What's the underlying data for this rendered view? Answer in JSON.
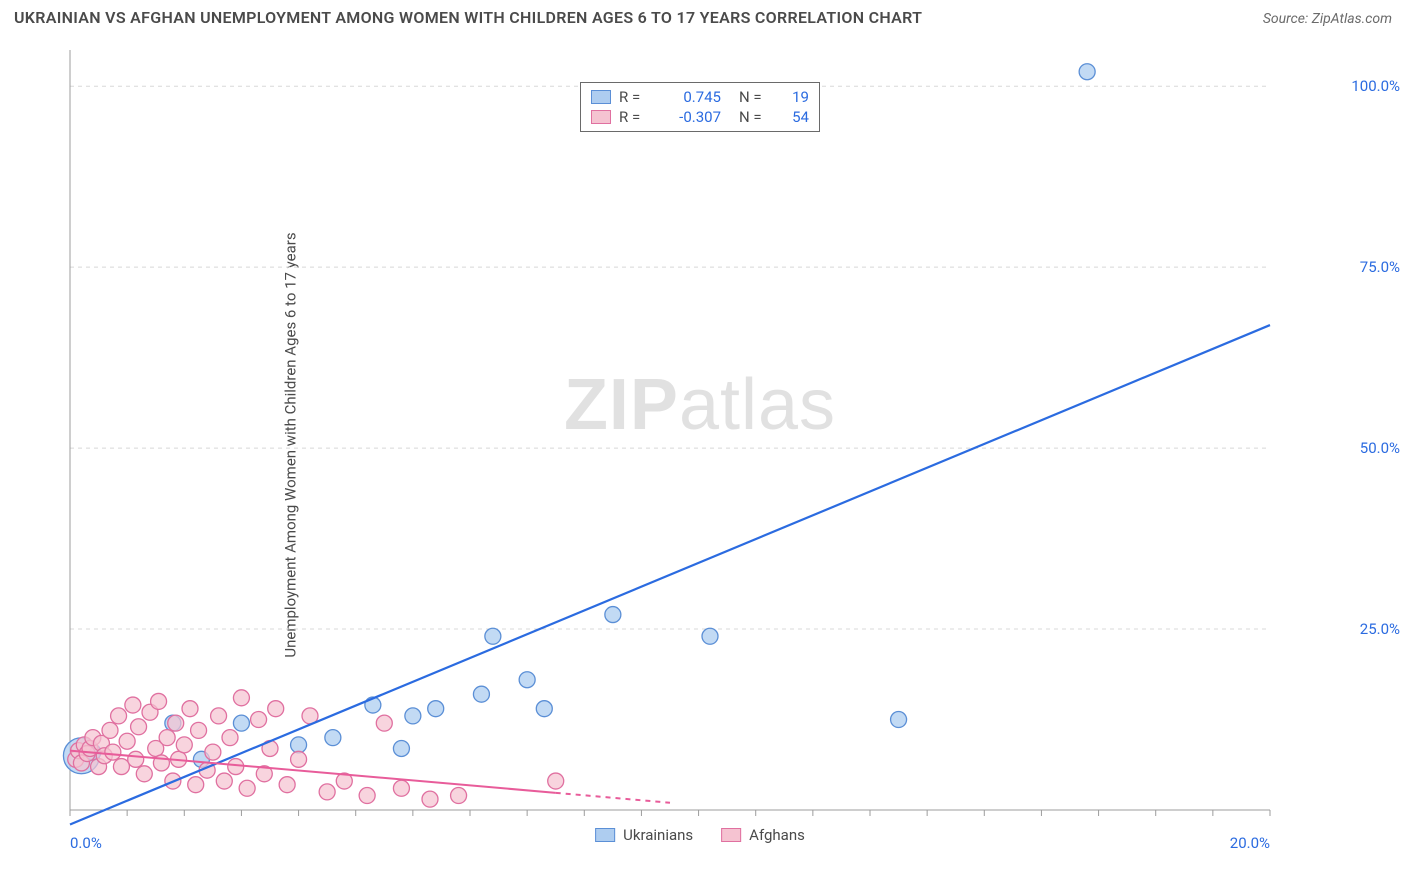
{
  "title": "UKRAINIAN VS AFGHAN UNEMPLOYMENT AMONG WOMEN WITH CHILDREN AGES 6 TO 17 YEARS CORRELATION CHART",
  "source": "Source: ZipAtlas.com",
  "ylabel": "Unemployment Among Women with Children Ages 6 to 17 years",
  "watermark": {
    "bold": "ZIP",
    "rest": "atlas"
  },
  "chart": {
    "type": "scatter-with-regression",
    "background_color": "#ffffff",
    "grid_color": "#d8d8d8",
    "grid_dash": "4 4",
    "axis_color": "#9c9c9c",
    "tick_label_color": "#2b6be0",
    "tick_fontsize": 15,
    "xlim": [
      0,
      21
    ],
    "ylim": [
      0,
      105
    ],
    "x_ticks_minor_step": 1,
    "y_ticks": [
      25,
      50,
      75,
      100
    ],
    "y_tick_labels": [
      "25.0%",
      "50.0%",
      "75.0%",
      "100.0%"
    ],
    "x_tick_bottom_left": {
      "pos": 0,
      "label": "0.0%"
    },
    "x_tick_bottom_right": {
      "pos": 20,
      "label": "20.0%"
    },
    "series": [
      {
        "name": "Ukrainians",
        "marker_fill": "#aecdf0",
        "marker_stroke": "#5b8fd6",
        "marker_opacity": 0.75,
        "marker_r": 8,
        "line_color": "#2b6be0",
        "line_width": 2.2,
        "R": "0.745",
        "N": "19",
        "regression": {
          "x1": 0,
          "y1": -2,
          "x2": 21,
          "y2": 67
        },
        "points": [
          {
            "x": 0.2,
            "y": 7.5,
            "r": 18
          },
          {
            "x": 0.4,
            "y": 8.0
          },
          {
            "x": 1.8,
            "y": 12.0
          },
          {
            "x": 2.3,
            "y": 7.0
          },
          {
            "x": 3.0,
            "y": 12.0
          },
          {
            "x": 4.0,
            "y": 9.0
          },
          {
            "x": 4.6,
            "y": 10.0
          },
          {
            "x": 5.3,
            "y": 14.5
          },
          {
            "x": 6.0,
            "y": 13.0
          },
          {
            "x": 6.4,
            "y": 14.0
          },
          {
            "x": 7.2,
            "y": 16.0
          },
          {
            "x": 7.4,
            "y": 24.0
          },
          {
            "x": 8.0,
            "y": 18.0
          },
          {
            "x": 8.3,
            "y": 14.0
          },
          {
            "x": 9.5,
            "y": 27.0
          },
          {
            "x": 11.2,
            "y": 24.0
          },
          {
            "x": 14.5,
            "y": 12.5
          },
          {
            "x": 17.8,
            "y": 102.0
          },
          {
            "x": 5.8,
            "y": 8.5
          }
        ]
      },
      {
        "name": "Afghans",
        "marker_fill": "#f5c3d1",
        "marker_stroke": "#e070a0",
        "marker_opacity": 0.72,
        "marker_r": 8,
        "line_color": "#e85c9a",
        "line_width": 2.0,
        "R": "-0.307",
        "N": "54",
        "regression": {
          "x1": 0,
          "y1": 8.2,
          "x2": 10.5,
          "y2": 1.0
        },
        "regression_dash_after_x": 8.5,
        "points": [
          {
            "x": 0.1,
            "y": 7.0
          },
          {
            "x": 0.15,
            "y": 8.2
          },
          {
            "x": 0.2,
            "y": 6.5
          },
          {
            "x": 0.25,
            "y": 9.0
          },
          {
            "x": 0.3,
            "y": 7.8
          },
          {
            "x": 0.35,
            "y": 8.5
          },
          {
            "x": 0.4,
            "y": 10.0
          },
          {
            "x": 0.5,
            "y": 6.0
          },
          {
            "x": 0.55,
            "y": 9.2
          },
          {
            "x": 0.6,
            "y": 7.5
          },
          {
            "x": 0.7,
            "y": 11.0
          },
          {
            "x": 0.75,
            "y": 8.0
          },
          {
            "x": 0.85,
            "y": 13.0
          },
          {
            "x": 0.9,
            "y": 6.0
          },
          {
            "x": 1.0,
            "y": 9.5
          },
          {
            "x": 1.1,
            "y": 14.5
          },
          {
            "x": 1.15,
            "y": 7.0
          },
          {
            "x": 1.2,
            "y": 11.5
          },
          {
            "x": 1.3,
            "y": 5.0
          },
          {
            "x": 1.4,
            "y": 13.5
          },
          {
            "x": 1.5,
            "y": 8.5
          },
          {
            "x": 1.55,
            "y": 15.0
          },
          {
            "x": 1.6,
            "y": 6.5
          },
          {
            "x": 1.7,
            "y": 10.0
          },
          {
            "x": 1.8,
            "y": 4.0
          },
          {
            "x": 1.85,
            "y": 12.0
          },
          {
            "x": 1.9,
            "y": 7.0
          },
          {
            "x": 2.0,
            "y": 9.0
          },
          {
            "x": 2.1,
            "y": 14.0
          },
          {
            "x": 2.2,
            "y": 3.5
          },
          {
            "x": 2.25,
            "y": 11.0
          },
          {
            "x": 2.4,
            "y": 5.5
          },
          {
            "x": 2.5,
            "y": 8.0
          },
          {
            "x": 2.6,
            "y": 13.0
          },
          {
            "x": 2.7,
            "y": 4.0
          },
          {
            "x": 2.8,
            "y": 10.0
          },
          {
            "x": 2.9,
            "y": 6.0
          },
          {
            "x": 3.0,
            "y": 15.5
          },
          {
            "x": 3.1,
            "y": 3.0
          },
          {
            "x": 3.3,
            "y": 12.5
          },
          {
            "x": 3.4,
            "y": 5.0
          },
          {
            "x": 3.5,
            "y": 8.5
          },
          {
            "x": 3.6,
            "y": 14.0
          },
          {
            "x": 3.8,
            "y": 3.5
          },
          {
            "x": 4.0,
            "y": 7.0
          },
          {
            "x": 4.2,
            "y": 13.0
          },
          {
            "x": 4.5,
            "y": 2.5
          },
          {
            "x": 4.8,
            "y": 4.0
          },
          {
            "x": 5.2,
            "y": 2.0
          },
          {
            "x": 5.5,
            "y": 12.0
          },
          {
            "x": 5.8,
            "y": 3.0
          },
          {
            "x": 6.3,
            "y": 1.5
          },
          {
            "x": 6.8,
            "y": 2.0
          },
          {
            "x": 8.5,
            "y": 4.0
          }
        ]
      }
    ],
    "legend_bottom": [
      {
        "label": "Ukrainians",
        "fill": "#aecdf0",
        "stroke": "#5b8fd6"
      },
      {
        "label": "Afghans",
        "fill": "#f5c3d1",
        "stroke": "#e070a0"
      }
    ]
  }
}
